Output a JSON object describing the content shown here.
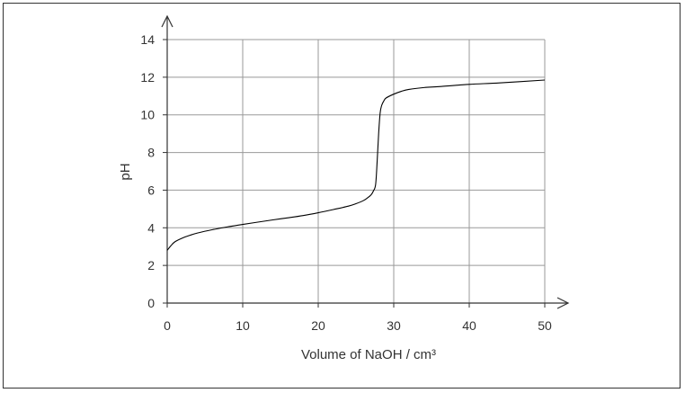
{
  "chart_data": {
    "type": "line",
    "title": "",
    "xlabel": "Volume of NaOH / cm³",
    "ylabel": "pH",
    "xlim": [
      0,
      50
    ],
    "ylim": [
      0,
      14
    ],
    "x_ticks": [
      "0",
      "10",
      "20",
      "30",
      "40",
      "50"
    ],
    "y_ticks": [
      "0",
      "2",
      "4",
      "6",
      "8",
      "10",
      "12",
      "14"
    ],
    "grid": true,
    "line_color": "#000000",
    "grid_color": "#999999",
    "series": [
      {
        "x": [
          0,
          0.5,
          1,
          2,
          3,
          4,
          6,
          8,
          10,
          12,
          14,
          16,
          18,
          20,
          22,
          24,
          25,
          26,
          26.5,
          27,
          27.3,
          27.6,
          27.8,
          28,
          28.2,
          28.4,
          28.7,
          29,
          30,
          31,
          32,
          34,
          36,
          40,
          44,
          50
        ],
        "y": [
          2.8,
          3.05,
          3.25,
          3.45,
          3.6,
          3.72,
          3.9,
          4.05,
          4.18,
          4.3,
          4.42,
          4.53,
          4.65,
          4.8,
          4.97,
          5.15,
          5.28,
          5.45,
          5.58,
          5.75,
          5.95,
          6.3,
          7.5,
          9.0,
          10.1,
          10.5,
          10.75,
          10.9,
          11.1,
          11.25,
          11.35,
          11.45,
          11.5,
          11.62,
          11.7,
          11.85
        ]
      }
    ]
  }
}
